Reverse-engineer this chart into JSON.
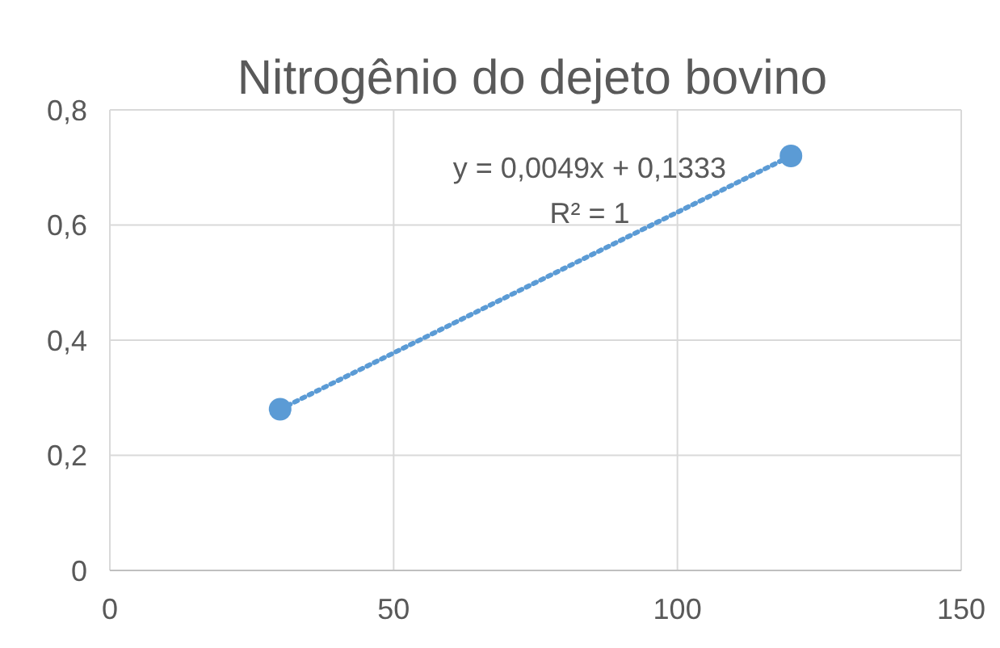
{
  "chart_data": {
    "type": "scatter",
    "title": "Nitrogênio do dejeto bovino",
    "x": [
      30,
      120
    ],
    "series": [
      {
        "type": "line",
        "color": "#5b9bd5",
        "values": [
          0.28,
          0.72
        ],
        "line_style": "dotted"
      },
      {
        "color": "#5b9bd5",
        "values": [
          0.28,
          0.72
        ],
        "marker": "circle"
      }
    ],
    "xlim": [
      0,
      150
    ],
    "xticks": [
      0,
      50,
      100,
      150
    ],
    "ylim": [
      0,
      0.8
    ],
    "yticks": [
      {
        "value": 0,
        "label": "0"
      },
      {
        "value": 0.2,
        "label": "0,2"
      },
      {
        "value": 0.4,
        "label": "0,4"
      },
      {
        "value": 0.6,
        "label": "0,6"
      },
      {
        "value": 0.8,
        "label": "0,8"
      }
    ],
    "grid": true,
    "annotations": [
      "y = 0,0049x + 0,1333",
      "R² = 1"
    ]
  }
}
